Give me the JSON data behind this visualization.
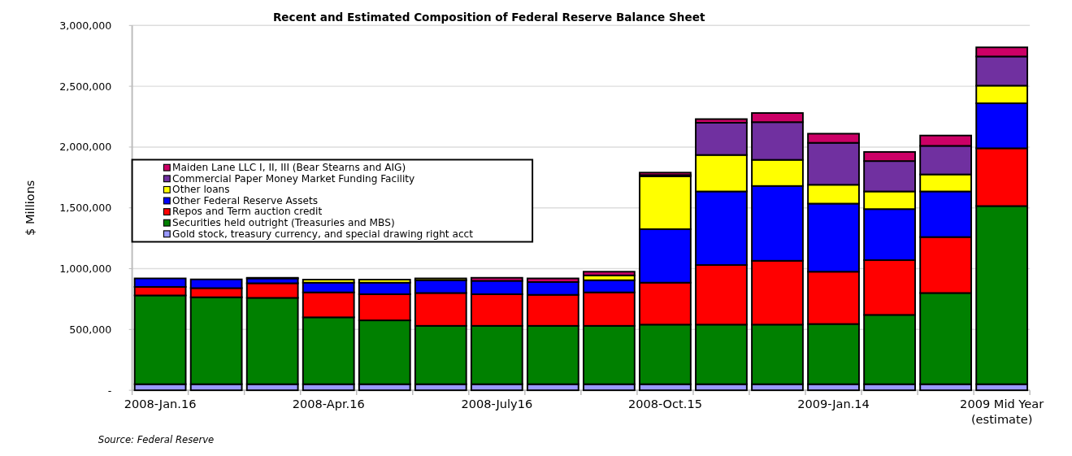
{
  "chart_data": {
    "type": "bar",
    "stacked": true,
    "title": "Recent and Estimated Composition of Federal Reserve Balance Sheet",
    "ylabel": "$ Millions",
    "categories": [
      "2008-Jan.16",
      null,
      null,
      "2008-Apr.16",
      null,
      null,
      "2008-July16",
      null,
      null,
      "2008-Oct.15",
      null,
      null,
      "2009-Jan.14",
      null,
      null,
      "2009 Mid Year\n(estimate)"
    ],
    "series": [
      {
        "name": "Gold stock, treasury currency, and special drawing right acct",
        "color": "#9999ff",
        "values": [
          50000,
          50000,
          50000,
          50000,
          50000,
          50000,
          50000,
          50000,
          50000,
          50000,
          50000,
          50000,
          50000,
          50000,
          50000,
          50000
        ]
      },
      {
        "name": "Securities held outright (Treasuries and MBS)",
        "color": "#008000",
        "values": [
          730000,
          715000,
          710000,
          550000,
          525000,
          480000,
          480000,
          480000,
          480000,
          490000,
          490000,
          490000,
          495000,
          570000,
          750000,
          1465000
        ]
      },
      {
        "name": "Repos and Term auction credit",
        "color": "#ff0000",
        "values": [
          70000,
          75000,
          120000,
          205000,
          215000,
          270000,
          260000,
          255000,
          275000,
          345000,
          490000,
          525000,
          430000,
          450000,
          460000,
          475000
        ]
      },
      {
        "name": "Other Federal Reserve Assets",
        "color": "#0000ff",
        "values": [
          70000,
          72000,
          40000,
          80000,
          95000,
          105000,
          110000,
          105000,
          100000,
          440000,
          605000,
          615000,
          560000,
          420000,
          375000,
          370000
        ]
      },
      {
        "name": "Other loans",
        "color": "#ffff00",
        "values": [
          0,
          0,
          5000,
          25000,
          25000,
          15000,
          null,
          null,
          40000,
          435000,
          300000,
          215000,
          155000,
          145000,
          140000,
          145000
        ]
      },
      {
        "name": "Commercial Paper Money Market Funding Facility",
        "color": "#7030a0",
        "values": [
          0,
          0,
          0,
          0,
          0,
          0,
          0,
          0,
          0,
          10000,
          265000,
          310000,
          345000,
          250000,
          235000,
          240000
        ]
      },
      {
        "name": "Maiden Lane LLC I, II, III (Bear Stearns and AIG)",
        "color": "#cc0066",
        "values": [
          0,
          0,
          0,
          0,
          0,
          0,
          25000,
          30000,
          30000,
          20000,
          30000,
          75000,
          75000,
          75000,
          85000,
          75000
        ]
      }
    ],
    "ylim": [
      0,
      3000000
    ],
    "yticks": [
      {
        "value": 0,
        "label": "-"
      },
      {
        "value": 500000,
        "label": "500,000"
      },
      {
        "value": 1000000,
        "label": "1,000,000"
      },
      {
        "value": 1500000,
        "label": "1,500,000"
      },
      {
        "value": 2000000,
        "label": "2,000,000"
      },
      {
        "value": 2500000,
        "label": "2,500,000"
      },
      {
        "value": 3000000,
        "label": "3,000,000"
      }
    ],
    "grid": "y",
    "legend": "left",
    "annotations": [
      "Source: Federal Reserve"
    ]
  }
}
